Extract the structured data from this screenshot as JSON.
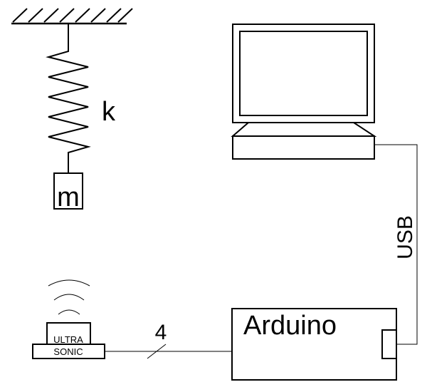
{
  "spring_mass": {
    "spring_label": "k",
    "mass_label": "m"
  },
  "computer": {
    "cable_label": "USB"
  },
  "arduino": {
    "label": "Arduino"
  },
  "sensor": {
    "label_line1": "ULTRA",
    "label_line2": "SONIC",
    "wire_count": "4"
  },
  "colors": {
    "stroke": "#000000",
    "background": "#ffffff"
  }
}
